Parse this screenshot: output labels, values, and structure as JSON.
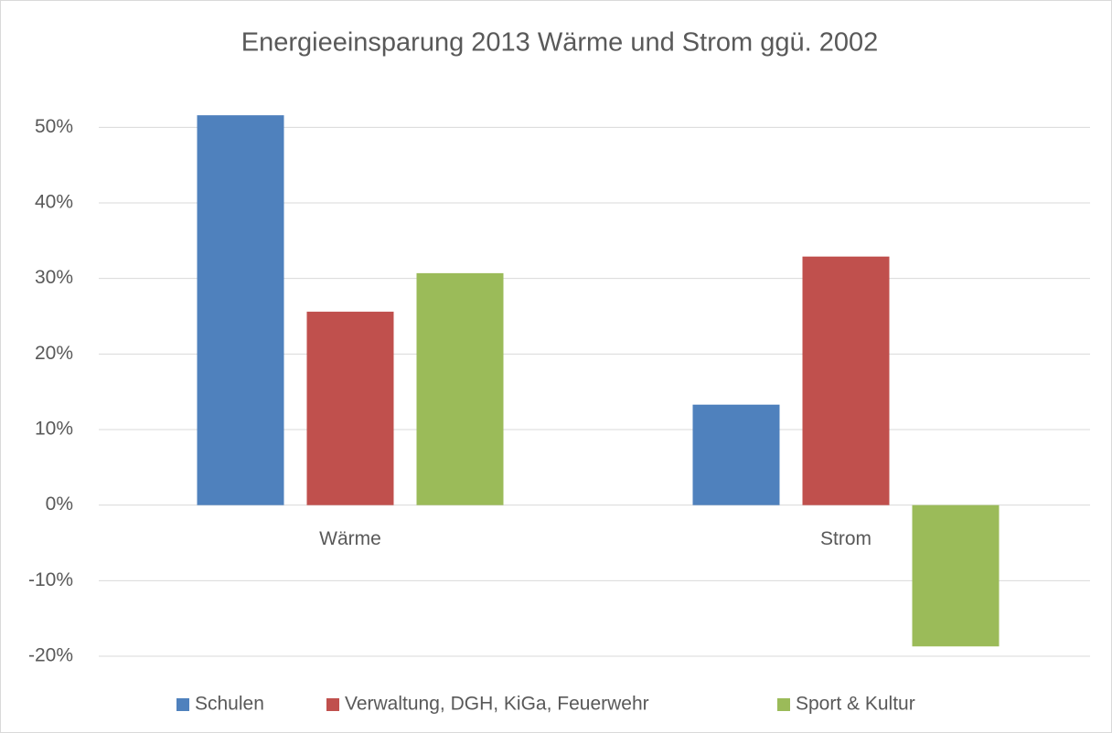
{
  "chart_data": {
    "type": "bar",
    "title": "Energieeinsparung 2013 Wärme und Strom ggü. 2002",
    "categories": [
      "Wärme",
      "Strom"
    ],
    "series": [
      {
        "name": "Schulen",
        "color": "#4f81bd",
        "values": [
          51.6,
          13.3
        ]
      },
      {
        "name": "Verwaltung, DGH, KiGa, Feuerwehr",
        "color": "#c0504d",
        "values": [
          25.6,
          32.9
        ]
      },
      {
        "name": "Sport & Kultur",
        "color": "#9bbb59",
        "values": [
          30.7,
          -18.7
        ]
      }
    ],
    "ylim": [
      -20,
      55
    ],
    "yticks": [
      {
        "value": -20,
        "label": "-20%"
      },
      {
        "value": -10,
        "label": "-10%"
      },
      {
        "value": 0,
        "label": "0%"
      },
      {
        "value": 10,
        "label": "10%"
      },
      {
        "value": 20,
        "label": "20%"
      },
      {
        "value": 30,
        "label": "30%"
      },
      {
        "value": 40,
        "label": "40%"
      },
      {
        "value": 50,
        "label": "50%"
      }
    ],
    "grid": true,
    "legend": "bottom"
  }
}
